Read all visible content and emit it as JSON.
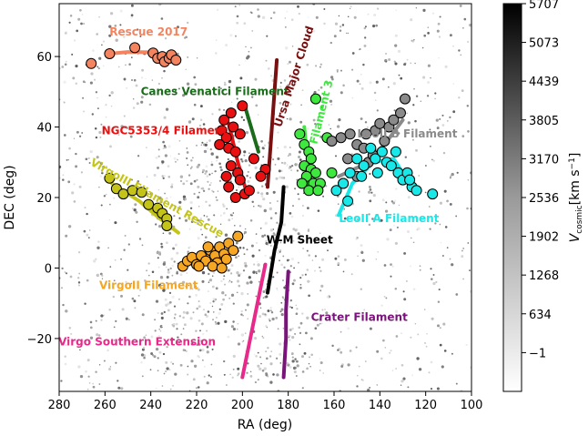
{
  "chart_data": {
    "type": "scatter",
    "xlabel": "RA (deg)",
    "ylabel": "DEC (deg)",
    "xlim": [
      280,
      100
    ],
    "ylim": [
      -35,
      75
    ],
    "x_ticks": [
      "280",
      "260",
      "240",
      "220",
      "200",
      "180",
      "160",
      "140",
      "120",
      "100"
    ],
    "x_tick_values": [
      280,
      260,
      240,
      220,
      200,
      180,
      160,
      140,
      120,
      100
    ],
    "y_ticks": [
      "−20",
      "0",
      "20",
      "40",
      "60"
    ],
    "y_tick_values": [
      -20,
      0,
      20,
      40,
      60
    ],
    "colorbar": {
      "label_main": "V",
      "label_sub": "cosmic",
      "label_unit": "[km s",
      "label_exp": "−1",
      "label_close": "]",
      "ticks": [
        "5707",
        "5073",
        "4439",
        "3805",
        "3170",
        "2536",
        "1902",
        "1268",
        "634",
        "−1"
      ],
      "tick_values": [
        5707,
        5073,
        4439,
        3805,
        3170,
        2536,
        1902,
        1268,
        634,
        -1
      ],
      "range": [
        -635,
        5707
      ],
      "colormap": "Greys"
    },
    "annotations": [
      {
        "text": "Rescue 2017",
        "color": "#f4845f",
        "x": 241,
        "y": 66
      },
      {
        "text": "Canes Venatici Filament",
        "color": "#1a6b1a",
        "x": 212,
        "y": 49
      },
      {
        "text": "NGC5353/4 Filament",
        "color": "#e81010",
        "x": 234,
        "y": 38
      },
      {
        "text": "VirgoIII Filament Rescue",
        "color": "#c4c418",
        "x": 238,
        "y": 19,
        "rotate": 29
      },
      {
        "text": "VirgoII Filament",
        "color": "#f5a623",
        "x": 241,
        "y": -6
      },
      {
        "text": "Virgo Southern Extension",
        "color": "#e8298a",
        "x": 246,
        "y": -22
      },
      {
        "text": "Ursa Major Cloud",
        "color": "#7a0f0f",
        "x": 176,
        "y": 54,
        "rotate": -72
      },
      {
        "text": "Filament 3",
        "color": "#3ee83e",
        "x": 164,
        "y": 44,
        "rotate": -76
      },
      {
        "text": "W-M Sheet",
        "color": "#000000",
        "x": 175,
        "y": 7
      },
      {
        "text": "Crater Filament",
        "color": "#7a137a",
        "x": 149,
        "y": -15
      },
      {
        "text": "LeoII B Filament",
        "color": "#8a8a8a",
        "x": 128,
        "y": 37
      },
      {
        "text": "LeoII A Filament",
        "color": "#18e8e8",
        "x": 136,
        "y": 13
      }
    ],
    "series": [
      {
        "name": "Rescue 2017",
        "color": "#f4845f",
        "line": [
          [
            258,
            60.8
          ],
          [
            250,
            61.3
          ],
          [
            241,
            61.2
          ],
          [
            234,
            60.2
          ],
          [
            228,
            58.8
          ]
        ],
        "points": [
          [
            266,
            58
          ],
          [
            258,
            60.8
          ],
          [
            247,
            62.5
          ],
          [
            239,
            61
          ],
          [
            237,
            59.5
          ],
          [
            235,
            60
          ],
          [
            234,
            58.5
          ],
          [
            232,
            59.5
          ],
          [
            231,
            60.5
          ],
          [
            229,
            59
          ]
        ]
      },
      {
        "name": "Canes Venatici Filament",
        "color": "#1a6b1a",
        "line": [
          [
            199,
            46
          ],
          [
            193,
            33
          ]
        ],
        "points": []
      },
      {
        "name": "NGC5353/4 Filament",
        "color": "#e81010",
        "line": [
          [
            206,
            41
          ],
          [
            202,
            30
          ],
          [
            198,
            21
          ]
        ],
        "points": [
          [
            208,
            42
          ],
          [
            209,
            39
          ],
          [
            205,
            44
          ],
          [
            207,
            37
          ],
          [
            210,
            35
          ],
          [
            206,
            34
          ],
          [
            204,
            40
          ],
          [
            201,
            38
          ],
          [
            203,
            33
          ],
          [
            200,
            46
          ],
          [
            205,
            29
          ],
          [
            202,
            27
          ],
          [
            207,
            26
          ],
          [
            201,
            25
          ],
          [
            206,
            23
          ],
          [
            199,
            21
          ],
          [
            203,
            20
          ],
          [
            190,
            28
          ],
          [
            192,
            26
          ],
          [
            195,
            31
          ],
          [
            197,
            22
          ]
        ]
      },
      {
        "name": "VirgoIII Filament Rescue",
        "color": "#c4c418",
        "line": [
          [
            257,
            24
          ],
          [
            245,
            19
          ],
          [
            236,
            14
          ],
          [
            228,
            10
          ]
        ],
        "points": [
          [
            258,
            25.5
          ],
          [
            255,
            22.5
          ],
          [
            252,
            21
          ],
          [
            248,
            22
          ],
          [
            244,
            21.5
          ],
          [
            241,
            18
          ],
          [
            237,
            17
          ],
          [
            235,
            15.5
          ],
          [
            233,
            14
          ],
          [
            233,
            12
          ]
        ]
      },
      {
        "name": "VirgoII Filament",
        "color": "#f5a623",
        "line": [
          [
            226,
            1
          ],
          [
            217,
            3
          ],
          [
            206,
            5
          ],
          [
            203,
            5
          ]
        ],
        "points": [
          [
            226,
            0.5
          ],
          [
            224,
            2
          ],
          [
            222,
            3
          ],
          [
            220,
            1
          ],
          [
            218,
            3.5
          ],
          [
            216,
            2
          ],
          [
            214,
            5
          ],
          [
            212,
            3.5
          ],
          [
            210,
            6
          ],
          [
            208,
            4
          ],
          [
            206,
            7
          ],
          [
            211,
            1.5
          ],
          [
            207,
            2.5
          ],
          [
            219,
            0.5
          ],
          [
            213,
            0.5
          ],
          [
            209,
            0
          ],
          [
            215,
            6
          ],
          [
            204,
            5
          ],
          [
            202,
            9
          ]
        ]
      },
      {
        "name": "Virgo Southern Extension",
        "color": "#e8298a",
        "line": [
          [
            190,
            1
          ],
          [
            200,
            -31
          ]
        ],
        "points": []
      },
      {
        "name": "Ursa Major Cloud",
        "color": "#7a0f0f",
        "line": [
          [
            185,
            59
          ],
          [
            189,
            23
          ]
        ],
        "points": []
      },
      {
        "name": "Filament 3",
        "color": "#3ee83e",
        "line": [
          [
            173,
            40
          ],
          [
            172,
            33
          ],
          [
            170,
            26
          ],
          [
            172,
            23
          ]
        ],
        "points": [
          [
            175,
            38
          ],
          [
            173,
            35
          ],
          [
            171,
            33
          ],
          [
            170,
            31
          ],
          [
            173,
            29
          ],
          [
            170,
            28
          ],
          [
            168,
            27
          ],
          [
            172,
            26
          ],
          [
            169,
            24
          ],
          [
            166,
            24
          ],
          [
            174,
            24
          ],
          [
            171,
            22
          ],
          [
            167,
            22
          ],
          [
            168,
            48
          ],
          [
            163,
            37
          ],
          [
            161,
            27
          ]
        ]
      },
      {
        "name": "W-M Sheet",
        "color": "#000000",
        "line": [
          [
            182,
            23
          ],
          [
            183,
            13
          ],
          [
            186,
            5
          ],
          [
            189,
            -7
          ]
        ],
        "points": []
      },
      {
        "name": "Crater Filament",
        "color": "#7a137a",
        "line": [
          [
            180,
            -1
          ],
          [
            181,
            -12
          ],
          [
            181,
            -20
          ],
          [
            182,
            -31
          ]
        ],
        "points": []
      },
      {
        "name": "LeoII B Filament",
        "color": "#8a8a8a",
        "line": [
          [
            158,
            26
          ],
          [
            148,
            29
          ],
          [
            138,
            35
          ],
          [
            130,
            42
          ]
        ],
        "points": [
          [
            161,
            36
          ],
          [
            157,
            37
          ],
          [
            153,
            38
          ],
          [
            150,
            35
          ],
          [
            147,
            34
          ],
          [
            145,
            30
          ],
          [
            142,
            39
          ],
          [
            140,
            41
          ],
          [
            138,
            36
          ],
          [
            136,
            40
          ],
          [
            134,
            42
          ],
          [
            131,
            44
          ],
          [
            129,
            48
          ],
          [
            154,
            31
          ],
          [
            156,
            24
          ],
          [
            150,
            26
          ],
          [
            143,
            32
          ],
          [
            146,
            38
          ]
        ]
      },
      {
        "name": "LeoII A Filament",
        "color": "#18e8e8",
        "line": [
          [
            158,
            15
          ],
          [
            152,
            24
          ],
          [
            143,
            30
          ],
          [
            134,
            31
          ],
          [
            126,
            23
          ]
        ],
        "points": [
          [
            159,
            22
          ],
          [
            156,
            24
          ],
          [
            153,
            27
          ],
          [
            150,
            31
          ],
          [
            147,
            29
          ],
          [
            144,
            34
          ],
          [
            142,
            31
          ],
          [
            139,
            33
          ],
          [
            137,
            30
          ],
          [
            135,
            29
          ],
          [
            132,
            27
          ],
          [
            130,
            25
          ],
          [
            128,
            27
          ],
          [
            126,
            23
          ],
          [
            124,
            22
          ],
          [
            117,
            21
          ],
          [
            154,
            19
          ],
          [
            148,
            26
          ],
          [
            141,
            27
          ],
          [
            133,
            33
          ],
          [
            127,
            25
          ]
        ]
      }
    ]
  }
}
